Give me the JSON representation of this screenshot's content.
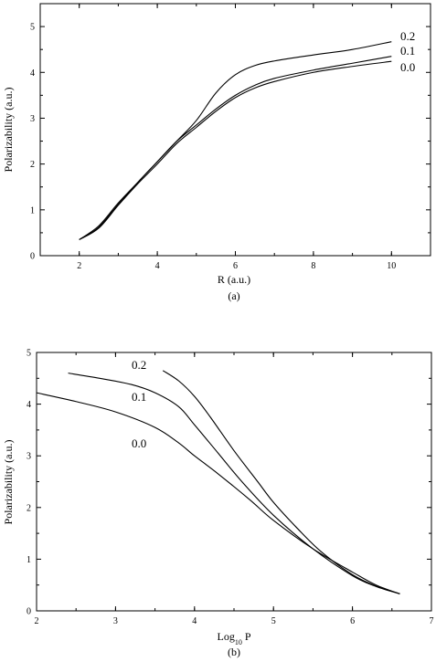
{
  "chart_data": [
    {
      "type": "line",
      "panel_label": "(a)",
      "xlabel": "R (a.u.)",
      "ylabel": "Polarizability (a.u.)",
      "xlim": [
        1,
        11
      ],
      "ylim": [
        0,
        5.5
      ],
      "xticks": [
        2,
        4,
        6,
        8,
        10
      ],
      "yticks": [
        0,
        1,
        2,
        3,
        4,
        5
      ],
      "series": [
        {
          "name": "0.2",
          "x": [
            2,
            2.5,
            3,
            3.5,
            4,
            4.5,
            5,
            5.5,
            6,
            6.5,
            7,
            8,
            9,
            10
          ],
          "y": [
            0.35,
            0.65,
            1.15,
            1.6,
            2.05,
            2.5,
            2.95,
            3.55,
            3.95,
            4.15,
            4.25,
            4.38,
            4.5,
            4.67
          ]
        },
        {
          "name": "0.1",
          "x": [
            2,
            2.5,
            3,
            3.5,
            4,
            4.5,
            5,
            5.5,
            6,
            6.5,
            7,
            8,
            9,
            10
          ],
          "y": [
            0.35,
            0.62,
            1.12,
            1.6,
            2.05,
            2.5,
            2.85,
            3.2,
            3.5,
            3.72,
            3.87,
            4.05,
            4.2,
            4.35
          ]
        },
        {
          "name": "0.0",
          "x": [
            2,
            2.5,
            3,
            3.5,
            4,
            4.5,
            5,
            5.5,
            6,
            6.5,
            7,
            8,
            9,
            10
          ],
          "y": [
            0.35,
            0.6,
            1.1,
            1.57,
            2.0,
            2.45,
            2.8,
            3.15,
            3.45,
            3.66,
            3.8,
            4.0,
            4.13,
            4.24
          ]
        }
      ]
    },
    {
      "type": "line",
      "panel_label": "(b)",
      "xlabel_main": "Log",
      "xlabel_sub": "10",
      "xlabel_end": " P",
      "ylabel": "Polarizability (a.u.)",
      "xlim": [
        2,
        7
      ],
      "ylim": [
        0,
        5
      ],
      "xticks": [
        2,
        3,
        4,
        5,
        6,
        7
      ],
      "yticks": [
        0,
        1,
        2,
        3,
        4,
        5
      ],
      "series": [
        {
          "name": "0.2",
          "x": [
            3.6,
            3.8,
            4.0,
            4.2,
            4.5,
            4.8,
            5.0,
            5.3,
            5.6,
            6.0,
            6.3,
            6.6
          ],
          "y": [
            4.65,
            4.45,
            4.15,
            3.75,
            3.1,
            2.5,
            2.1,
            1.6,
            1.15,
            0.7,
            0.48,
            0.33
          ]
        },
        {
          "name": "0.1",
          "x": [
            2.4,
            2.8,
            3.2,
            3.5,
            3.8,
            4.0,
            4.3,
            4.6,
            5.0,
            5.5,
            6.0,
            6.3,
            6.6
          ],
          "y": [
            4.6,
            4.5,
            4.38,
            4.22,
            3.95,
            3.6,
            3.05,
            2.5,
            1.85,
            1.2,
            0.68,
            0.47,
            0.33
          ]
        },
        {
          "name": "0.0",
          "x": [
            2.0,
            2.5,
            3.0,
            3.5,
            3.8,
            4.0,
            4.3,
            4.7,
            5.0,
            5.5,
            6.0,
            6.3,
            6.6
          ],
          "y": [
            4.22,
            4.05,
            3.85,
            3.55,
            3.25,
            3.0,
            2.65,
            2.15,
            1.75,
            1.2,
            0.75,
            0.5,
            0.33
          ]
        }
      ]
    }
  ]
}
